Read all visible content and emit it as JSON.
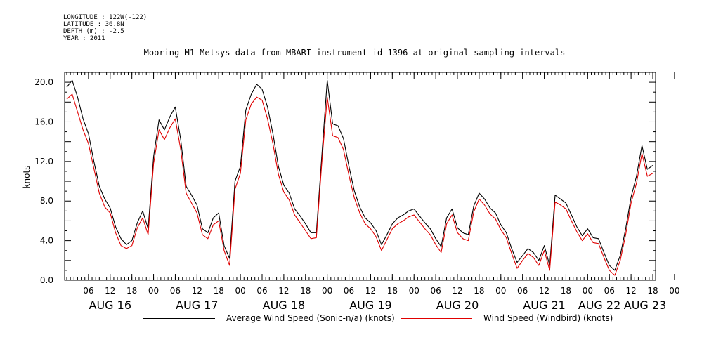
{
  "meta": {
    "longitude": "LONGITUDE : 122W(-122)",
    "latitude": "LATITUDE : 36.8N",
    "depth": "DEPTH (m) : -2.5",
    "year": "YEAR : 2011"
  },
  "chart_data": {
    "type": "line",
    "title": "Mooring M1 Metsys data from MBARI instrument id 1396 at original sampling intervals",
    "xlabel": "",
    "ylabel": "knots",
    "ylim": [
      0,
      21
    ],
    "yticks": [
      "0.0",
      "4.0",
      "8.0",
      "12.0",
      "16.0",
      "20.0"
    ],
    "ytick_values": [
      0,
      4,
      8,
      12,
      16,
      20
    ],
    "xlim_hours": [
      0,
      162
    ],
    "hour_labels": [
      "06",
      "12",
      "18",
      "00",
      "06",
      "12",
      "18",
      "00",
      "06",
      "12",
      "18",
      "00",
      "06",
      "12",
      "18",
      "00",
      "06",
      "12",
      "18",
      "00",
      "06",
      "12",
      "18",
      "00",
      "06",
      "12",
      "18",
      "00"
    ],
    "day_labels": [
      "AUG 16",
      "AUG 17",
      "AUG 18",
      "AUG 19",
      "AUG 20",
      "AUG 21",
      "AUG 22",
      "AUG 23"
    ],
    "series": [
      {
        "name": "Average Wind Speed (Sonic-n/a) (knots)",
        "color": "#000000",
        "x_hours": [
          0,
          1.5,
          3,
          4.5,
          6,
          7.5,
          9,
          10.5,
          12,
          13.5,
          15,
          16.5,
          18,
          19.5,
          21,
          22.5,
          24,
          25.5,
          27,
          28.5,
          30,
          31.5,
          33,
          34.5,
          36,
          37.5,
          39,
          40.5,
          42,
          43.5,
          45,
          46.5,
          48,
          49.5,
          51,
          52.5,
          54,
          55.5,
          57,
          58.5,
          60,
          61.5,
          63,
          64.5,
          66,
          67.5,
          69,
          70.5,
          72,
          73.5,
          75,
          76.5,
          78,
          79.5,
          81,
          82.5,
          84,
          85.5,
          87,
          88.5,
          90,
          91.5,
          93,
          94.5,
          96,
          97.5,
          99,
          100.5,
          102,
          103.5,
          105,
          106.5,
          108,
          109.5,
          111,
          112.5,
          114,
          115.5,
          117,
          118.5,
          120,
          121.5,
          123,
          124.5,
          126,
          127.5,
          129,
          130.5,
          132,
          133.5,
          135,
          136.5,
          138,
          139.5,
          141,
          142.5,
          144,
          145.5,
          147,
          148.5,
          150,
          151.5,
          153,
          154.5,
          156,
          157.5,
          159,
          160.5,
          162
        ],
        "values": [
          19.5,
          20.2,
          18.5,
          16.3,
          14.8,
          12,
          9.5,
          8.2,
          7.3,
          5.4,
          4.2,
          3.6,
          4,
          5.8,
          7,
          5.2,
          12.5,
          16.2,
          15.2,
          16.5,
          17.5,
          14.2,
          9.5,
          8.6,
          7.6,
          5.2,
          4.8,
          6.3,
          6.8,
          3.5,
          2.2,
          10,
          11.5,
          17.2,
          18.8,
          19.8,
          19.3,
          17.5,
          14.8,
          11.5,
          9.6,
          8.8,
          7.2,
          6.5,
          5.7,
          4.8,
          4.8,
          12.5,
          20.2,
          15.8,
          15.6,
          14.3,
          11.5,
          9,
          7.4,
          6.3,
          5.8,
          5,
          3.6,
          4.6,
          5.7,
          6.3,
          6.6,
          7,
          7.2,
          6.5,
          5.8,
          5.2,
          4.2,
          3.4,
          6.3,
          7.2,
          5.3,
          4.8,
          4.6,
          7.5,
          8.8,
          8.2,
          7.3,
          6.8,
          5.6,
          4.8,
          3.2,
          1.8,
          2.5,
          3.2,
          2.8,
          2,
          3.5,
          1.5,
          8.6,
          8.2,
          7.8,
          6.6,
          5.4,
          4.5,
          5.2,
          4.3,
          4.2,
          2.8,
          1.5,
          1,
          2.5,
          5.2,
          8.4,
          10.5,
          13.6,
          11.2,
          11.6
        ]
      },
      {
        "name": "Wind Speed (Windbird) (knots)",
        "color": "#e00000",
        "x_hours": [
          0,
          1.5,
          3,
          4.5,
          6,
          7.5,
          9,
          10.5,
          12,
          13.5,
          15,
          16.5,
          18,
          19.5,
          21,
          22.5,
          24,
          25.5,
          27,
          28.5,
          30,
          31.5,
          33,
          34.5,
          36,
          37.5,
          39,
          40.5,
          42,
          43.5,
          45,
          46.5,
          48,
          49.5,
          51,
          52.5,
          54,
          55.5,
          57,
          58.5,
          60,
          61.5,
          63,
          64.5,
          66,
          67.5,
          69,
          70.5,
          72,
          73.5,
          75,
          76.5,
          78,
          79.5,
          81,
          82.5,
          84,
          85.5,
          87,
          88.5,
          90,
          91.5,
          93,
          94.5,
          96,
          97.5,
          99,
          100.5,
          102,
          103.5,
          105,
          106.5,
          108,
          109.5,
          111,
          112.5,
          114,
          115.5,
          117,
          118.5,
          120,
          121.5,
          123,
          124.5,
          126,
          127.5,
          129,
          130.5,
          132,
          133.5,
          135,
          136.5,
          138,
          139.5,
          141,
          142.5,
          144,
          145.5,
          147,
          148.5,
          150,
          151.5,
          153,
          154.5,
          156,
          157.5,
          159,
          160.5,
          162
        ],
        "values": [
          18.3,
          18.8,
          17,
          15.2,
          13.8,
          11.3,
          8.8,
          7.4,
          6.8,
          4.8,
          3.5,
          3.2,
          3.5,
          5.3,
          6.3,
          4.6,
          11.8,
          15.2,
          14.2,
          15.4,
          16.3,
          13.2,
          8.8,
          7.8,
          6.8,
          4.6,
          4.2,
          5.6,
          6,
          3,
          1.5,
          9.2,
          10.8,
          16.2,
          17.8,
          18.5,
          18.2,
          16.3,
          13.8,
          10.7,
          8.9,
          8.1,
          6.6,
          5.8,
          5,
          4.2,
          4.3,
          11.8,
          18.5,
          14.6,
          14.4,
          13.2,
          10.6,
          8.3,
          6.8,
          5.7,
          5.2,
          4.4,
          3,
          4.1,
          5.2,
          5.7,
          6,
          6.4,
          6.6,
          5.9,
          5.2,
          4.6,
          3.6,
          2.8,
          5.7,
          6.6,
          4.8,
          4.2,
          4,
          6.9,
          8.2,
          7.6,
          6.7,
          6.2,
          5.1,
          4.3,
          2.7,
          1.2,
          2,
          2.7,
          2.3,
          1.5,
          3,
          1,
          7.9,
          7.6,
          7.2,
          6,
          4.9,
          4,
          4.7,
          3.8,
          3.7,
          2.3,
          1,
          0.5,
          2,
          4.6,
          7.8,
          9.8,
          12.8,
          10.5,
          10.8
        ]
      }
    ]
  }
}
